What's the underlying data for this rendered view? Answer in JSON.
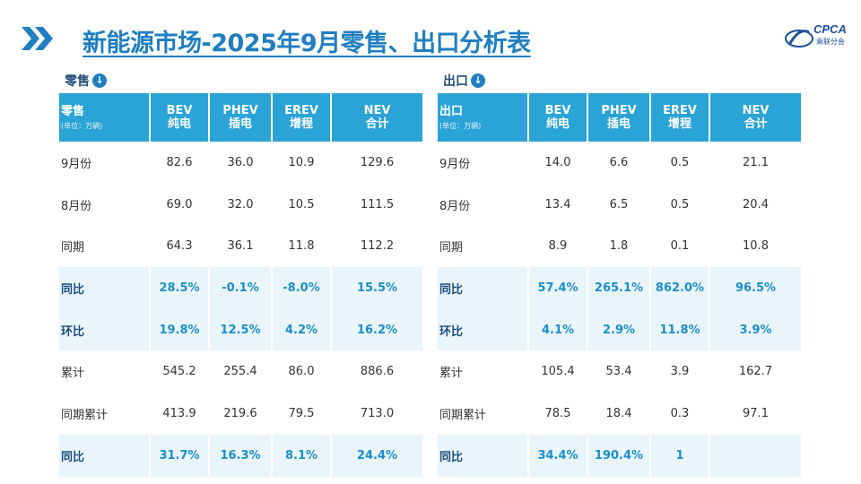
{
  "title": "新能源市场-2025年9月零售、出口分析表",
  "logo": {
    "brand": "CPCA",
    "sub": "乘联分会"
  },
  "retail": {
    "label": "零售",
    "header": {
      "row_label": "零售",
      "unit": "(单位：万辆)",
      "columns": [
        {
          "en": "BEV",
          "cn": "纯电"
        },
        {
          "en": "PHEV",
          "cn": "插电"
        },
        {
          "en": "EREV",
          "cn": "增程"
        },
        {
          "en": "NEV",
          "cn": "合计"
        }
      ]
    },
    "rows": [
      {
        "label": "9月份",
        "values": [
          "82.6",
          "36.0",
          "10.9",
          "129.6"
        ]
      },
      {
        "label": "8月份",
        "values": [
          "69.0",
          "32.0",
          "10.5",
          "111.5"
        ]
      },
      {
        "label": "同期",
        "values": [
          "64.3",
          "36.1",
          "11.8",
          "112.2"
        ]
      },
      {
        "label": "同比",
        "values": [
          "28.5%",
          "-0.1%",
          "-8.0%",
          "15.5%"
        ]
      },
      {
        "label": "环比",
        "values": [
          "19.8%",
          "12.5%",
          "4.2%",
          "16.2%"
        ]
      },
      {
        "label": "累计",
        "values": [
          "545.2",
          "255.4",
          "86.0",
          "886.6"
        ]
      },
      {
        "label": "同期累计",
        "values": [
          "413.9",
          "219.6",
          "79.5",
          "713.0"
        ]
      },
      {
        "label": "同比",
        "values": [
          "31.7%",
          "16.3%",
          "8.1%",
          "24.4%"
        ]
      }
    ]
  },
  "export": {
    "label": "出口",
    "header": {
      "row_label": "出口",
      "unit": "(单位：万辆)",
      "columns": [
        {
          "en": "BEV",
          "cn": "纯电"
        },
        {
          "en": "PHEV",
          "cn": "插电"
        },
        {
          "en": "EREV",
          "cn": "增程"
        },
        {
          "en": "NEV",
          "cn": "合计"
        }
      ]
    },
    "rows": [
      {
        "label": "9月份",
        "values": [
          "14.0",
          "6.6",
          "0.5",
          "21.1"
        ]
      },
      {
        "label": "8月份",
        "values": [
          "13.4",
          "6.5",
          "0.5",
          "20.4"
        ]
      },
      {
        "label": "同期",
        "values": [
          "8.9",
          "1.8",
          "0.1",
          "10.8"
        ]
      },
      {
        "label": "同比",
        "values": [
          "57.4%",
          "265.1%",
          "862.0%",
          "96.5%"
        ]
      },
      {
        "label": "环比",
        "values": [
          "4.1%",
          "2.9%",
          "11.8%",
          "3.9%"
        ]
      },
      {
        "label": "累计",
        "values": [
          "105.4",
          "53.4",
          "3.9",
          "162.7"
        ]
      },
      {
        "label": "同期累计",
        "values": [
          "78.5",
          "18.4",
          "0.3",
          "97.1"
        ]
      },
      {
        "label": "同比",
        "values": [
          "34.4%",
          "190.4%",
          "1",
          ""
        ]
      }
    ]
  },
  "colors": {
    "accent": "#1f7fc1",
    "header_bg": "#2aa3d6",
    "highlight_bg": "#eaf5fb",
    "highlight_text": "#1a8fcc"
  }
}
